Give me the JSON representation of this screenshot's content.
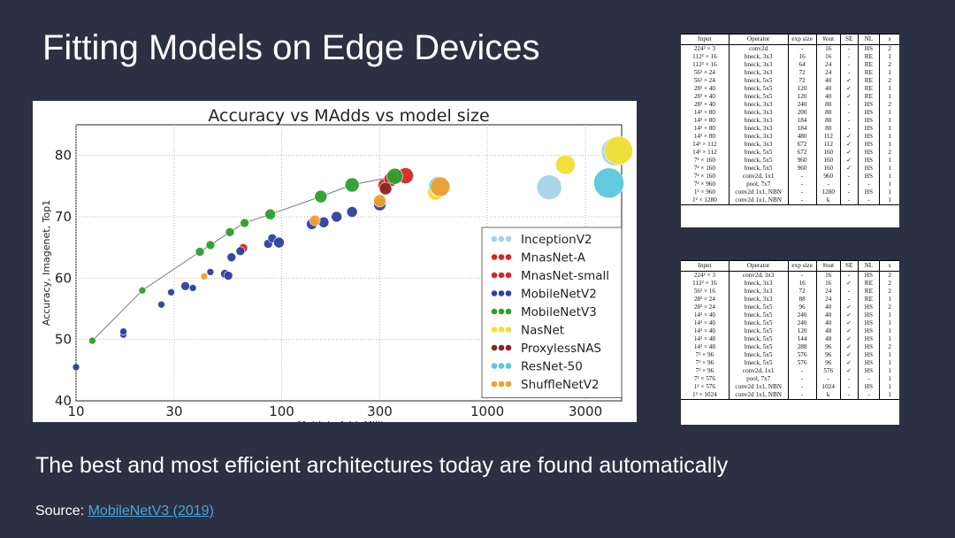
{
  "slide": {
    "title": "Fitting Models on Edge Devices",
    "subtitle": "The best and most efficient architectures today are found automatically",
    "source_label": "Source:",
    "source_link": "MobileNetV3 (2019)"
  },
  "chart_data": {
    "type": "scatter",
    "title": "Accuracy vs MAdds vs model size",
    "xlabel": "Multiply-Add, Millions",
    "ylabel": "Accuracy, Imagenet, Top1",
    "xscale": "log",
    "xlim": [
      10,
      4500
    ],
    "ylim": [
      40,
      85
    ],
    "xticks": [
      10,
      30,
      100,
      300,
      1000,
      3000
    ],
    "xtick_labels": [
      "10",
      "30",
      "100",
      "300",
      "1000",
      "3000"
    ],
    "yticks": [
      40,
      50,
      60,
      70,
      80
    ],
    "ytick_labels": [
      "40",
      "50",
      "60",
      "70",
      "80"
    ],
    "grid": true,
    "legend_position": "lower-right",
    "series": [
      {
        "name": "InceptionV2",
        "color": "#a7d3e8",
        "points": [
          [
            2000,
            74.8,
            14
          ],
          [
            4200,
            80.6,
            16
          ]
        ]
      },
      {
        "name": "MnasNet-A",
        "color": "#d62728",
        "points": [
          [
            315,
            75.2,
            7
          ],
          [
            340,
            76.1,
            8
          ],
          [
            400,
            76.7,
            9
          ]
        ]
      },
      {
        "name": "MnasNet-small",
        "color": "#d62728",
        "points": [
          [
            65,
            64.9,
            5
          ]
        ]
      },
      {
        "name": "MobileNetV2",
        "color": "#2f3fa0",
        "points": [
          [
            10,
            45.5,
            4
          ],
          [
            17,
            50.8,
            4
          ],
          [
            17,
            51.3,
            4
          ],
          [
            26,
            55.7,
            4
          ],
          [
            29,
            57.7,
            4
          ],
          [
            34,
            58.7,
            5
          ],
          [
            37,
            58.4,
            4
          ],
          [
            45,
            61.0,
            4
          ],
          [
            53,
            60.7,
            5
          ],
          [
            55,
            60.4,
            5
          ],
          [
            57,
            63.4,
            5
          ],
          [
            63,
            64.4,
            5
          ],
          [
            86,
            65.6,
            5
          ],
          [
            90,
            66.5,
            5
          ],
          [
            97,
            65.8,
            6
          ],
          [
            140,
            68.8,
            6
          ],
          [
            160,
            69.1,
            6
          ],
          [
            185,
            70.0,
            6
          ],
          [
            220,
            70.8,
            6
          ],
          [
            300,
            72.0,
            7
          ]
        ]
      },
      {
        "name": "MobileNetV3",
        "color": "#2ca02c",
        "points": [
          [
            12,
            49.8,
            4
          ],
          [
            21,
            58.0,
            4
          ],
          [
            40,
            64.3,
            5
          ],
          [
            45,
            65.4,
            5
          ],
          [
            56,
            67.5,
            5
          ],
          [
            66,
            69.0,
            5
          ],
          [
            88,
            70.4,
            6
          ],
          [
            155,
            73.3,
            7
          ],
          [
            220,
            75.2,
            8
          ],
          [
            355,
            76.6,
            9
          ]
        ]
      },
      {
        "name": "NasNet",
        "color": "#f2e033",
        "points": [
          [
            560,
            74.0,
            9
          ],
          [
            2400,
            78.5,
            11
          ],
          [
            4350,
            80.8,
            16
          ]
        ]
      },
      {
        "name": "ProxylessNAS",
        "color": "#8c2424",
        "points": [
          [
            320,
            74.6,
            7
          ]
        ]
      },
      {
        "name": "ResNet-50",
        "color": "#5bc8dc",
        "points": [
          [
            580,
            75.0,
            11
          ],
          [
            3900,
            75.5,
            17
          ]
        ]
      },
      {
        "name": "ShuffleNetV2",
        "color": "#f0a030",
        "points": [
          [
            42,
            60.3,
            4
          ],
          [
            145,
            69.4,
            6
          ],
          [
            300,
            72.6,
            7
          ],
          [
            590,
            74.9,
            11
          ]
        ]
      }
    ]
  },
  "table1": {
    "headers": [
      "Input",
      "Operator",
      "exp size",
      "#out",
      "SE",
      "NL",
      "s"
    ],
    "rows": [
      [
        "224² × 3",
        "conv2d",
        "-",
        "16",
        "-",
        "HS",
        "2"
      ],
      [
        "112² × 16",
        "bneck, 3x3",
        "16",
        "16",
        "-",
        "RE",
        "1"
      ],
      [
        "112² × 16",
        "bneck, 3x3",
        "64",
        "24",
        "-",
        "RE",
        "2"
      ],
      [
        "56² × 24",
        "bneck, 3x3",
        "72",
        "24",
        "-",
        "RE",
        "1"
      ],
      [
        "56² × 24",
        "bneck, 5x5",
        "72",
        "40",
        "✓",
        "RE",
        "2"
      ],
      [
        "28² × 40",
        "bneck, 5x5",
        "120",
        "40",
        "✓",
        "RE",
        "1"
      ],
      [
        "28² × 40",
        "bneck, 5x5",
        "120",
        "40",
        "✓",
        "RE",
        "1"
      ],
      [
        "28² × 40",
        "bneck, 3x3",
        "240",
        "80",
        "-",
        "HS",
        "2"
      ],
      [
        "14² × 80",
        "bneck, 3x3",
        "200",
        "80",
        "-",
        "HS",
        "1"
      ],
      [
        "14² × 80",
        "bneck, 3x3",
        "184",
        "80",
        "-",
        "HS",
        "1"
      ],
      [
        "14² × 80",
        "bneck, 3x3",
        "184",
        "80",
        "-",
        "HS",
        "1"
      ],
      [
        "14² × 80",
        "bneck, 3x3",
        "480",
        "112",
        "✓",
        "HS",
        "1"
      ],
      [
        "14² × 112",
        "bneck, 3x3",
        "672",
        "112",
        "✓",
        "HS",
        "1"
      ],
      [
        "14² × 112",
        "bneck, 5x5",
        "672",
        "160",
        "✓",
        "HS",
        "2"
      ],
      [
        "7² × 160",
        "bneck, 5x5",
        "960",
        "160",
        "✓",
        "HS",
        "1"
      ],
      [
        "7² × 160",
        "bneck, 5x5",
        "960",
        "160",
        "✓",
        "HS",
        "1"
      ],
      [
        "7² × 160",
        "conv2d, 1x1",
        "-",
        "960",
        "-",
        "HS",
        "1"
      ],
      [
        "7² × 960",
        "pool, 7x7",
        "-",
        "-",
        "-",
        "-",
        "1"
      ],
      [
        "1² × 960",
        "conv2d 1x1, NBN",
        "-",
        "1280",
        "-",
        "HS",
        "1"
      ],
      [
        "1² × 1280",
        "conv2d 1x1, NBN",
        "-",
        "k",
        "-",
        "-",
        "1"
      ]
    ]
  },
  "table2": {
    "headers": [
      "Input",
      "Operator",
      "exp size",
      "#out",
      "SE",
      "NL",
      "s"
    ],
    "rows": [
      [
        "224² × 3",
        "conv2d, 3x3",
        "-",
        "16",
        "-",
        "HS",
        "2"
      ],
      [
        "112² × 16",
        "bneck, 3x3",
        "16",
        "16",
        "✓",
        "RE",
        "2"
      ],
      [
        "56² × 16",
        "bneck, 3x3",
        "72",
        "24",
        "-",
        "RE",
        "2"
      ],
      [
        "28² × 24",
        "bneck, 3x3",
        "88",
        "24",
        "-",
        "RE",
        "1"
      ],
      [
        "28² × 24",
        "bneck, 5x5",
        "96",
        "40",
        "✓",
        "HS",
        "2"
      ],
      [
        "14² × 40",
        "bneck, 5x5",
        "240",
        "40",
        "✓",
        "HS",
        "1"
      ],
      [
        "14² × 40",
        "bneck, 5x5",
        "240",
        "40",
        "✓",
        "HS",
        "1"
      ],
      [
        "14² × 40",
        "bneck, 5x5",
        "120",
        "48",
        "✓",
        "HS",
        "1"
      ],
      [
        "14² × 48",
        "bneck, 5x5",
        "144",
        "48",
        "✓",
        "HS",
        "1"
      ],
      [
        "14² × 48",
        "bneck, 5x5",
        "288",
        "96",
        "✓",
        "HS",
        "2"
      ],
      [
        "7² × 96",
        "bneck, 5x5",
        "576",
        "96",
        "✓",
        "HS",
        "1"
      ],
      [
        "7² × 96",
        "bneck, 5x5",
        "576",
        "96",
        "✓",
        "HS",
        "1"
      ],
      [
        "7² × 96",
        "conv2d, 1x1",
        "-",
        "576",
        "✓",
        "HS",
        "1"
      ],
      [
        "7² × 576",
        "pool, 7x7",
        "-",
        "-",
        "-",
        "-",
        "1"
      ],
      [
        "1² × 576",
        "conv2d 1x1, NBN",
        "-",
        "1024",
        "-",
        "HS",
        "1"
      ],
      [
        "1² × 1024",
        "conv2d 1x1, NBN",
        "-",
        "k",
        "-",
        "-",
        "1"
      ]
    ]
  }
}
